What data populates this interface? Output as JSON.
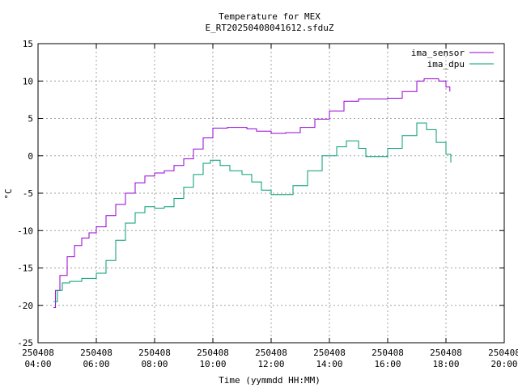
{
  "chart_data": {
    "type": "line",
    "title": "Temperature for MEX",
    "subtitle": "E_RT20250408041612.sfduZ",
    "xlabel": "Time (yymmdd HH:MM)",
    "ylabel": "°C",
    "xlim": [
      "2025-04-08 04:00",
      "2025-04-08 20:00"
    ],
    "ylim": [
      -25,
      15
    ],
    "grid": true,
    "legend_position": "top-right",
    "x_ticks": [
      {
        "t": "2025-04-08 04:00",
        "date": "250408",
        "time": "04:00"
      },
      {
        "t": "2025-04-08 06:00",
        "date": "250408",
        "time": "06:00"
      },
      {
        "t": "2025-04-08 08:00",
        "date": "250408",
        "time": "08:00"
      },
      {
        "t": "2025-04-08 10:00",
        "date": "250408",
        "time": "10:00"
      },
      {
        "t": "2025-04-08 12:00",
        "date": "250408",
        "time": "12:00"
      },
      {
        "t": "2025-04-08 14:00",
        "date": "250408",
        "time": "14:00"
      },
      {
        "t": "2025-04-08 16:00",
        "date": "250408",
        "time": "16:00"
      },
      {
        "t": "2025-04-08 18:00",
        "date": "250408",
        "time": "18:00"
      },
      {
        "t": "2025-04-08 20:00",
        "date": "250408",
        "time": "20:00"
      }
    ],
    "y_ticks": [
      -25,
      -20,
      -15,
      -10,
      -5,
      0,
      5,
      10,
      15
    ],
    "series": [
      {
        "name": "ima_sensor",
        "color": "#9400d3",
        "points": [
          [
            "2025-04-08 04:32",
            -20.3
          ],
          [
            "2025-04-08 04:36",
            -18.0
          ],
          [
            "2025-04-08 04:45",
            -16.0
          ],
          [
            "2025-04-08 05:00",
            -13.5
          ],
          [
            "2025-04-08 05:15",
            -12.0
          ],
          [
            "2025-04-08 05:30",
            -11.0
          ],
          [
            "2025-04-08 05:45",
            -10.3
          ],
          [
            "2025-04-08 06:00",
            -9.5
          ],
          [
            "2025-04-08 06:20",
            -8.0
          ],
          [
            "2025-04-08 06:40",
            -6.5
          ],
          [
            "2025-04-08 07:00",
            -5.0
          ],
          [
            "2025-04-08 07:20",
            -3.6
          ],
          [
            "2025-04-08 07:40",
            -2.7
          ],
          [
            "2025-04-08 08:00",
            -2.3
          ],
          [
            "2025-04-08 08:20",
            -2.0
          ],
          [
            "2025-04-08 08:40",
            -1.3
          ],
          [
            "2025-04-08 09:00",
            -0.4
          ],
          [
            "2025-04-08 09:20",
            0.9
          ],
          [
            "2025-04-08 09:40",
            2.4
          ],
          [
            "2025-04-08 10:00",
            3.7
          ],
          [
            "2025-04-08 10:30",
            3.8
          ],
          [
            "2025-04-08 10:50",
            3.8
          ],
          [
            "2025-04-08 11:10",
            3.6
          ],
          [
            "2025-04-08 11:30",
            3.3
          ],
          [
            "2025-04-08 12:00",
            3.0
          ],
          [
            "2025-04-08 12:30",
            3.1
          ],
          [
            "2025-04-08 13:00",
            3.8
          ],
          [
            "2025-04-08 13:30",
            4.9
          ],
          [
            "2025-04-08 14:00",
            6.0
          ],
          [
            "2025-04-08 14:30",
            7.3
          ],
          [
            "2025-04-08 15:00",
            7.6
          ],
          [
            "2025-04-08 15:30",
            7.6
          ],
          [
            "2025-04-08 16:00",
            7.7
          ],
          [
            "2025-04-08 16:30",
            8.6
          ],
          [
            "2025-04-08 17:00",
            10.0
          ],
          [
            "2025-04-08 17:15",
            10.3
          ],
          [
            "2025-04-08 17:30",
            10.3
          ],
          [
            "2025-04-08 17:45",
            10.0
          ],
          [
            "2025-04-08 18:00",
            9.2
          ],
          [
            "2025-04-08 18:08",
            8.6
          ]
        ]
      },
      {
        "name": "ima_dpu",
        "color": "#009e73",
        "points": [
          [
            "2025-04-08 04:32",
            -19.5
          ],
          [
            "2025-04-08 04:40",
            -18.0
          ],
          [
            "2025-04-08 04:50",
            -17.0
          ],
          [
            "2025-04-08 05:05",
            -16.8
          ],
          [
            "2025-04-08 05:30",
            -16.4
          ],
          [
            "2025-04-08 06:00",
            -15.7
          ],
          [
            "2025-04-08 06:20",
            -14.0
          ],
          [
            "2025-04-08 06:40",
            -11.3
          ],
          [
            "2025-04-08 07:00",
            -9.0
          ],
          [
            "2025-04-08 07:20",
            -7.6
          ],
          [
            "2025-04-08 07:40",
            -6.8
          ],
          [
            "2025-04-08 08:00",
            -7.0
          ],
          [
            "2025-04-08 08:20",
            -6.8
          ],
          [
            "2025-04-08 08:40",
            -5.7
          ],
          [
            "2025-04-08 09:00",
            -4.2
          ],
          [
            "2025-04-08 09:20",
            -2.5
          ],
          [
            "2025-04-08 09:40",
            -1.0
          ],
          [
            "2025-04-08 09:55",
            -0.6
          ],
          [
            "2025-04-08 10:15",
            -1.3
          ],
          [
            "2025-04-08 10:35",
            -2.0
          ],
          [
            "2025-04-08 11:00",
            -2.5
          ],
          [
            "2025-04-08 11:20",
            -3.5
          ],
          [
            "2025-04-08 11:40",
            -4.6
          ],
          [
            "2025-04-08 12:00",
            -5.2
          ],
          [
            "2025-04-08 12:20",
            -5.2
          ],
          [
            "2025-04-08 12:45",
            -4.0
          ],
          [
            "2025-04-08 13:15",
            -2.0
          ],
          [
            "2025-04-08 13:45",
            0.0
          ],
          [
            "2025-04-08 14:15",
            1.2
          ],
          [
            "2025-04-08 14:35",
            2.0
          ],
          [
            "2025-04-08 15:00",
            1.0
          ],
          [
            "2025-04-08 15:15",
            -0.1
          ],
          [
            "2025-04-08 15:35",
            -0.1
          ],
          [
            "2025-04-08 16:00",
            1.0
          ],
          [
            "2025-04-08 16:30",
            2.7
          ],
          [
            "2025-04-08 17:00",
            4.4
          ],
          [
            "2025-04-08 17:20",
            3.5
          ],
          [
            "2025-04-08 17:40",
            1.8
          ],
          [
            "2025-04-08 18:00",
            0.2
          ],
          [
            "2025-04-08 18:10",
            -0.9
          ]
        ]
      }
    ]
  }
}
